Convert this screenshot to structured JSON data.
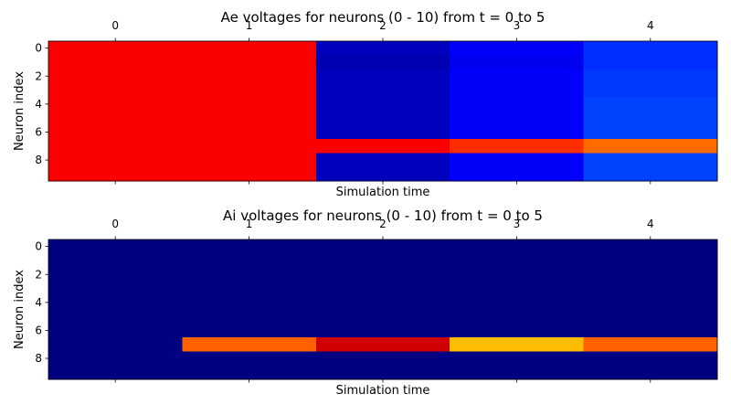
{
  "chart_data": [
    {
      "type": "heatmap",
      "title": "Ae voltages for neurons (0 - 10) from t = 0 to 5",
      "xlabel": "Simulation time",
      "ylabel": "Neuron index",
      "x": [
        0,
        1,
        2,
        3,
        4
      ],
      "y": [
        0,
        1,
        2,
        3,
        4,
        5,
        6,
        7,
        8,
        9
      ],
      "xticks": [
        "0",
        "1",
        "2",
        "3",
        "4"
      ],
      "yticks": [
        "0",
        "2",
        "4",
        "6",
        "8"
      ],
      "xlim": [
        -0.5,
        4.5
      ],
      "ylim": [
        9.5,
        -0.5
      ],
      "xaxis_position": "top and bottom",
      "colormap": "jet",
      "values": [
        [
          0.88,
          0.88,
          0.06,
          0.12,
          0.17
        ],
        [
          0.88,
          0.88,
          0.05,
          0.11,
          0.17
        ],
        [
          0.88,
          0.88,
          0.06,
          0.12,
          0.18
        ],
        [
          0.88,
          0.88,
          0.06,
          0.12,
          0.18
        ],
        [
          0.88,
          0.88,
          0.06,
          0.12,
          0.19
        ],
        [
          0.88,
          0.88,
          0.06,
          0.12,
          0.19
        ],
        [
          0.88,
          0.88,
          0.06,
          0.12,
          0.19
        ],
        [
          0.88,
          0.88,
          0.88,
          0.83,
          0.77
        ],
        [
          0.88,
          0.88,
          0.06,
          0.12,
          0.19
        ],
        [
          0.88,
          0.88,
          0.06,
          0.12,
          0.19
        ]
      ]
    },
    {
      "type": "heatmap",
      "title": "Ai voltages for neurons (0 - 10) from t = 0 to 5",
      "xlabel": "Simulation time",
      "ylabel": "Neuron index",
      "x": [
        0,
        1,
        2,
        3,
        4
      ],
      "y": [
        0,
        1,
        2,
        3,
        4,
        5,
        6,
        7,
        8,
        9
      ],
      "xticks": [
        "0",
        "1",
        "2",
        "3",
        "4"
      ],
      "yticks": [
        "0",
        "2",
        "4",
        "6",
        "8"
      ],
      "xlim": [
        -0.5,
        4.5
      ],
      "ylim": [
        9.5,
        -0.5
      ],
      "xaxis_position": "top and bottom",
      "colormap": "jet",
      "values": [
        [
          0.0,
          0.0,
          0.0,
          0.0,
          0.0
        ],
        [
          0.0,
          0.0,
          0.0,
          0.0,
          0.0
        ],
        [
          0.0,
          0.0,
          0.0,
          0.0,
          0.0
        ],
        [
          0.0,
          0.0,
          0.0,
          0.0,
          0.0
        ],
        [
          0.0,
          0.0,
          0.0,
          0.0,
          0.0
        ],
        [
          0.0,
          0.0,
          0.0,
          0.0,
          0.0
        ],
        [
          0.0,
          0.0,
          0.0,
          0.0,
          0.0
        ],
        [
          0.0,
          0.78,
          0.92,
          0.69,
          0.78
        ],
        [
          0.0,
          0.0,
          0.0,
          0.0,
          0.0
        ],
        [
          0.0,
          0.0,
          0.0,
          0.0,
          0.0
        ]
      ]
    }
  ]
}
